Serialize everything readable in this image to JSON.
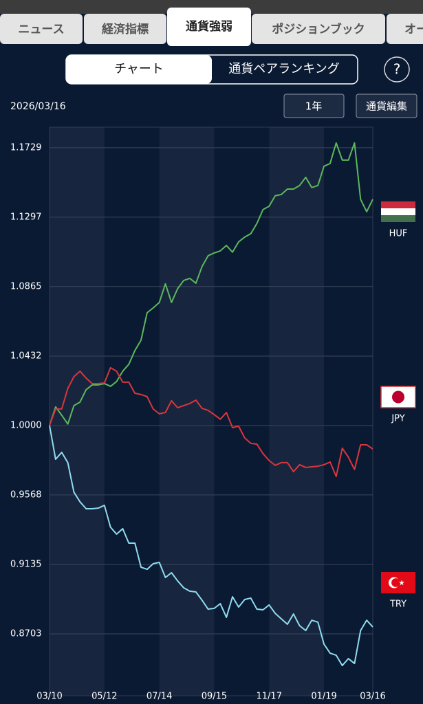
{
  "tabs": [
    "ニュース",
    "経済指標",
    "通貨強弱",
    "ポジションブック",
    "オー"
  ],
  "toggle": [
    "チャート",
    "通貨ペアランキング"
  ],
  "help": "?",
  "date": "2026/03/16",
  "period": "1年",
  "edit_button": "通貨編集",
  "chart_data": {
    "type": "line",
    "x": [
      0,
      1,
      2,
      3,
      4,
      5,
      6,
      7,
      8,
      9,
      10,
      11,
      12,
      13,
      14,
      15,
      16,
      17,
      18,
      19,
      20,
      21,
      22,
      23,
      24,
      25,
      26,
      27,
      28,
      29,
      30,
      31,
      32,
      33,
      34,
      35,
      36,
      37,
      38,
      39,
      40,
      41,
      42,
      43,
      44,
      45,
      46,
      47,
      48,
      49,
      50,
      51,
      52,
      53
    ],
    "xlim": [
      0,
      53
    ],
    "xticks": [
      {
        "value": 0,
        "label": "03/10"
      },
      {
        "value": 9,
        "label": "05/12"
      },
      {
        "value": 18,
        "label": "07/14"
      },
      {
        "value": 27,
        "label": "09/15"
      },
      {
        "value": 36,
        "label": "11/17"
      },
      {
        "value": 45,
        "label": "01/19"
      },
      {
        "value": 53,
        "label": "03/16"
      }
    ],
    "ylim": [
      0.8318,
      1.1857
    ],
    "yticks": [
      1.1729,
      1.1297,
      1.0865,
      1.0432,
      {
        "value": 1,
        "label": "1.0000"
      },
      0.9568,
      0.9135,
      0.8703
    ],
    "grid": true,
    "series": [
      {
        "name": "HUF",
        "color": "#5cb85c",
        "values": [
          1.0,
          1.0116,
          1.0064,
          1.0009,
          1.0124,
          1.0146,
          1.0223,
          1.0253,
          1.0253,
          1.0261,
          1.0244,
          1.0274,
          1.0338,
          1.0381,
          1.0467,
          1.0531,
          1.0702,
          1.0732,
          1.0766,
          1.0882,
          1.0766,
          1.0852,
          1.0903,
          1.0916,
          1.0886,
          1.0989,
          1.1057,
          1.1074,
          1.1087,
          1.1121,
          1.1079,
          1.1143,
          1.1173,
          1.1194,
          1.1258,
          1.1344,
          1.1365,
          1.143,
          1.1438,
          1.1472,
          1.1472,
          1.1494,
          1.1545,
          1.1481,
          1.1494,
          1.1614,
          1.1631,
          1.1759,
          1.1652,
          1.1652,
          1.1759,
          1.1408,
          1.1331,
          1.1408
        ]
      },
      {
        "name": "JPY",
        "color": "#d9363e",
        "values": [
          1.0,
          1.0103,
          1.0103,
          1.0231,
          1.0304,
          1.0338,
          1.0295,
          1.0261,
          1.0261,
          1.0265,
          1.036,
          1.0338,
          1.027,
          1.027,
          1.0201,
          1.0193,
          1.018,
          1.0103,
          1.0073,
          1.0081,
          1.0154,
          1.0111,
          1.0124,
          1.0137,
          1.0158,
          1.0107,
          1.0094,
          1.0068,
          1.0039,
          1.0081,
          0.9987,
          0.9996,
          0.9923,
          0.9889,
          0.9884,
          0.9825,
          0.9782,
          0.9752,
          0.9769,
          0.9769,
          0.9713,
          0.9756,
          0.9739,
          0.9743,
          0.9747,
          0.9756,
          0.9773,
          0.9683,
          0.9859,
          0.9803,
          0.9726,
          0.988,
          0.988,
          0.9854
        ]
      },
      {
        "name": "TRY",
        "color": "#8fdcf0",
        "values": [
          1.0,
          0.979,
          0.9833,
          0.9769,
          0.9585,
          0.9525,
          0.9482,
          0.9482,
          0.9486,
          0.9503,
          0.9367,
          0.9324,
          0.9358,
          0.9268,
          0.9268,
          0.9118,
          0.9105,
          0.914,
          0.9148,
          0.9054,
          0.9084,
          0.9033,
          0.899,
          0.8969,
          0.8964,
          0.8913,
          0.8857,
          0.8862,
          0.8891,
          0.8806,
          0.8934,
          0.887,
          0.8917,
          0.8926,
          0.8857,
          0.8853,
          0.8883,
          0.8831,
          0.8797,
          0.8763,
          0.8827,
          0.8754,
          0.8724,
          0.8788,
          0.8776,
          0.8639,
          0.8583,
          0.857,
          0.8506,
          0.8549,
          0.8519,
          0.8724,
          0.8788,
          0.8746
        ]
      }
    ]
  }
}
